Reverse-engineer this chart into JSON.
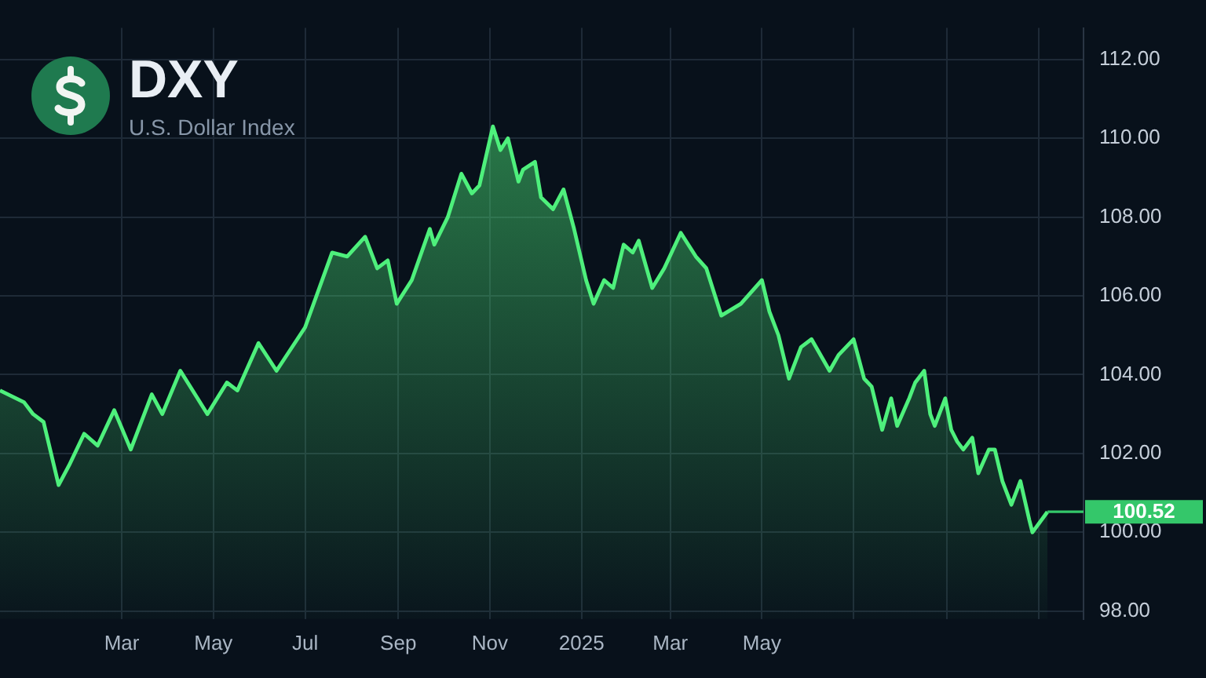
{
  "chart_data": {
    "type": "area",
    "title": "DXY",
    "subtitle": "U.S. Dollar Index",
    "color": "#4ef07c",
    "x": [
      "2023-12-11",
      "2023-12-27",
      "2024-01-02",
      "2024-01-09",
      "2024-01-19",
      "2024-01-26",
      "2024-02-05",
      "2024-02-14",
      "2024-02-25",
      "2024-03-07",
      "2024-03-21",
      "2024-03-28",
      "2024-04-09",
      "2024-04-27",
      "2024-05-10",
      "2024-05-17",
      "2024-05-31",
      "2024-06-12",
      "2024-07-01",
      "2024-07-19",
      "2024-07-29",
      "2024-08-10",
      "2024-08-18",
      "2024-08-25",
      "2024-08-31",
      "2024-09-10",
      "2024-09-22",
      "2024-09-25",
      "2024-10-04",
      "2024-10-13",
      "2024-10-20",
      "2024-10-25",
      "2024-11-03",
      "2024-11-08",
      "2024-11-13",
      "2024-11-20",
      "2024-11-23",
      "2024-12-01",
      "2024-12-05",
      "2024-12-13",
      "2024-12-20",
      "2024-12-27",
      "2025-01-04",
      "2025-01-09",
      "2025-01-16",
      "2025-01-22",
      "2025-01-29",
      "2025-02-04",
      "2025-02-08",
      "2025-02-17",
      "2025-02-25",
      "2025-03-08",
      "2025-03-18",
      "2025-03-25",
      "2025-04-04",
      "2025-04-17",
      "2025-05-01",
      "2025-05-06",
      "2025-05-12",
      "2025-05-19",
      "2025-05-27",
      "2025-06-03",
      "2025-06-15",
      "2025-06-21",
      "2025-07-01",
      "2025-07-08",
      "2025-07-13",
      "2025-07-20",
      "2025-07-26",
      "2025-07-30",
      "2025-08-07",
      "2025-08-11",
      "2025-08-17",
      "2025-08-21",
      "2025-08-24",
      "2025-08-31",
      "2025-09-04",
      "2025-09-08",
      "2025-09-12",
      "2025-09-18",
      "2025-09-22",
      "2025-09-29",
      "2025-10-03",
      "2025-10-08",
      "2025-10-14",
      "2025-10-20",
      "2025-10-26",
      "2025-10-28",
      "2025-11-07"
    ],
    "values": [
      103.6,
      103.3,
      103.0,
      102.8,
      101.2,
      101.7,
      102.5,
      102.2,
      103.1,
      102.1,
      103.5,
      103.0,
      104.1,
      103.0,
      103.8,
      103.6,
      104.8,
      104.1,
      105.2,
      107.1,
      107.0,
      107.5,
      106.7,
      106.9,
      105.8,
      106.4,
      107.7,
      107.3,
      108.0,
      109.1,
      108.6,
      108.8,
      110.3,
      109.7,
      110.0,
      108.9,
      109.2,
      109.4,
      108.5,
      108.2,
      108.7,
      107.7,
      106.4,
      105.8,
      106.4,
      106.2,
      107.3,
      107.1,
      107.4,
      106.2,
      106.7,
      107.6,
      107.0,
      106.7,
      105.5,
      105.8,
      106.4,
      105.6,
      105.0,
      103.9,
      104.7,
      104.9,
      104.1,
      104.5,
      104.9,
      103.9,
      103.7,
      102.6,
      103.4,
      102.7,
      103.4,
      103.8,
      104.1,
      103.0,
      102.7,
      103.4,
      102.6,
      102.3,
      102.1,
      102.4,
      101.5,
      102.1,
      102.1,
      101.3,
      100.7,
      101.3,
      100.3,
      100.0,
      100.52
    ],
    "xlim": [
      "2023-12-11",
      "2025-12-01"
    ],
    "xticks": [
      {
        "value": "2024-03",
        "label": "Mar"
      },
      {
        "value": "2024-05",
        "label": "May"
      },
      {
        "value": "2024-07",
        "label": "Jul"
      },
      {
        "value": "2024-09",
        "label": "Sep"
      },
      {
        "value": "2024-11",
        "label": "Nov"
      },
      {
        "value": "2025-01",
        "label": "2025"
      },
      {
        "value": "2025-03",
        "label": "Mar"
      },
      {
        "value": "2025-05",
        "label": "May"
      },
      {
        "value": "2025-07",
        "label": null
      },
      {
        "value": "2025-09",
        "label": null
      },
      {
        "value": "2025-11",
        "label": null
      }
    ],
    "ylim": [
      97.8,
      112.8
    ],
    "yticks": [
      {
        "value": 98,
        "label": "98.00"
      },
      {
        "value": 100,
        "label": "100.00"
      },
      {
        "value": 102,
        "label": "102.00"
      },
      {
        "value": 104,
        "label": "104.00"
      },
      {
        "value": 106,
        "label": "106.00"
      },
      {
        "value": 108,
        "label": "108.00"
      },
      {
        "value": 110,
        "label": "110.00"
      },
      {
        "value": 112,
        "label": "112.00"
      }
    ],
    "grid": true,
    "ref_lines": [
      {
        "axis": "y",
        "value": 100.52,
        "label": "100.52",
        "color": "#34c76a"
      }
    ]
  }
}
